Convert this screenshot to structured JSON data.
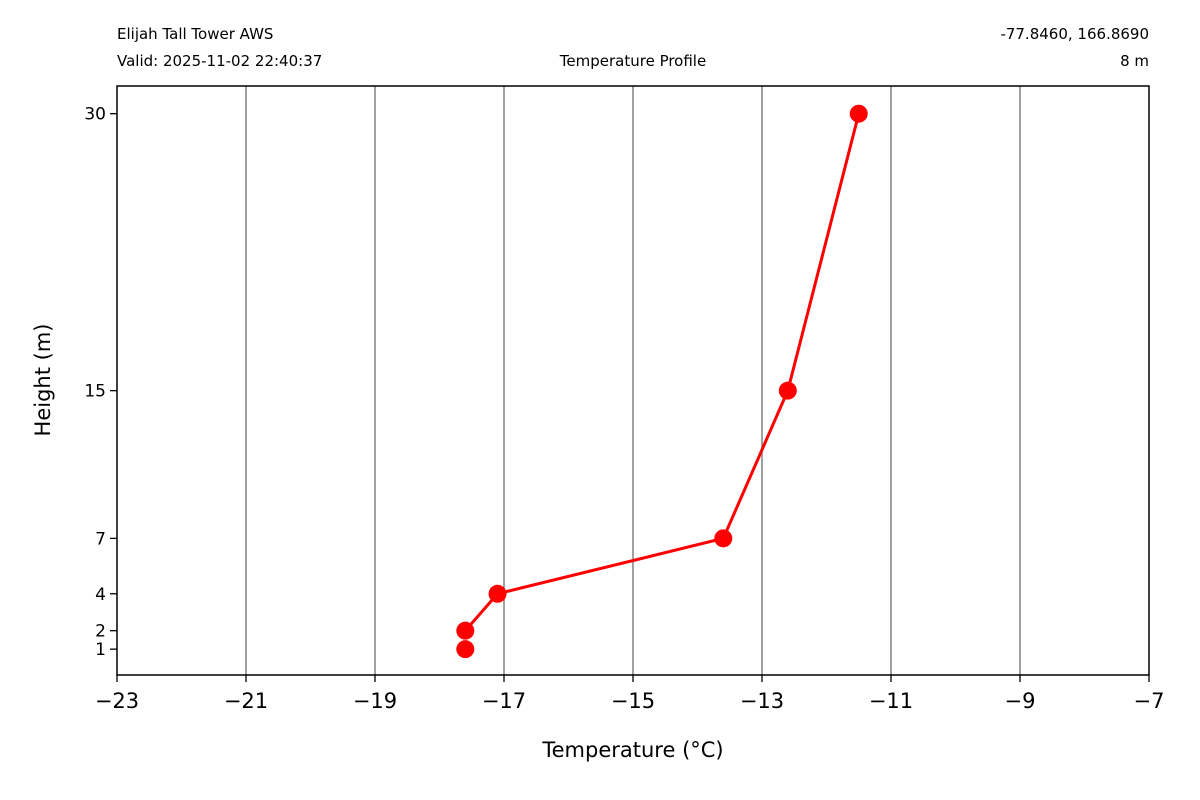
{
  "header": {
    "station": "Elijah Tall Tower AWS",
    "valid": "Valid: 2025-11-02 22:40:37",
    "title": "Temperature Profile",
    "coords": "-77.8460, 166.8690",
    "elevation": "8 m"
  },
  "chart_data": {
    "type": "line",
    "title": "Temperature Profile",
    "xlabel": "Temperature (°C)",
    "ylabel": "Height (m)",
    "xlim": [
      -23,
      -7
    ],
    "ylim": [
      -0.4,
      31.5
    ],
    "xticks": [
      -23,
      -21,
      -19,
      -17,
      -15,
      -13,
      -11,
      -9,
      -7
    ],
    "xtick_labels": [
      "−23",
      "−21",
      "−19",
      "−17",
      "−15",
      "−13",
      "−11",
      "−9",
      "−7"
    ],
    "yticks": [
      1,
      2,
      4,
      7,
      15,
      30
    ],
    "ytick_labels": [
      "1",
      "2",
      "4",
      "7",
      "15",
      "30"
    ],
    "grid": "vertical",
    "color": "#ff0000",
    "series": [
      {
        "style": "markers",
        "points": [
          {
            "height": 1,
            "temperature": -17.6
          },
          {
            "height": 2,
            "temperature": -17.6
          },
          {
            "height": 4,
            "temperature": -17.1
          },
          {
            "height": 7,
            "temperature": -13.6
          },
          {
            "height": 15,
            "temperature": -12.6
          },
          {
            "height": 30,
            "temperature": -11.5
          }
        ]
      },
      {
        "style": "line",
        "points": [
          {
            "height": 2,
            "temperature": -17.6
          },
          {
            "height": 4,
            "temperature": -17.1
          },
          {
            "height": 7,
            "temperature": -13.6
          },
          {
            "height": 15,
            "temperature": -12.6
          },
          {
            "height": 30,
            "temperature": -11.5
          }
        ]
      }
    ]
  }
}
